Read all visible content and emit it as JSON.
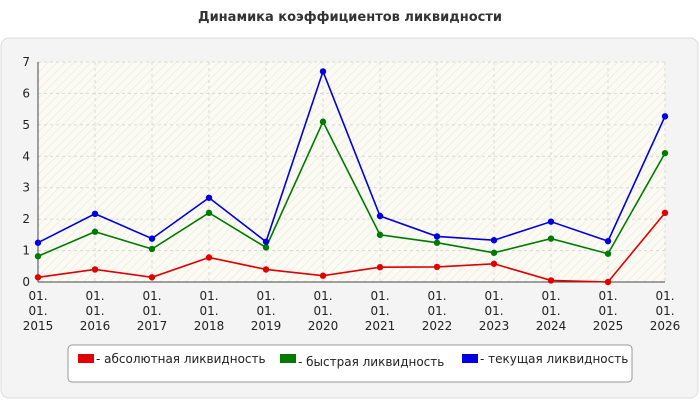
{
  "chart_data": {
    "type": "line",
    "title": "Динамика коэффициентов ликвидности",
    "categories": [
      "01.\n01.\n2015",
      "01.\n01.\n2016",
      "01.\n01.\n2017",
      "01.\n01.\n2018",
      "01.\n01.\n2019",
      "01.\n01.\n2020",
      "01.\n01.\n2021",
      "01.\n01.\n2022",
      "01.\n01.\n2023",
      "01.\n01.\n2024",
      "01.\n01.\n2025",
      "01.\n01.\n2026"
    ],
    "series": [
      {
        "name": "- абсолютная ликвидность",
        "color": "#e00000",
        "values": [
          0.15,
          0.4,
          0.15,
          0.78,
          0.4,
          0.2,
          0.47,
          0.48,
          0.58,
          0.05,
          0.0,
          2.2
        ]
      },
      {
        "name": "- быстрая ликвидность",
        "color": "#007a00",
        "values": [
          0.82,
          1.6,
          1.05,
          2.2,
          1.1,
          5.1,
          1.5,
          1.25,
          0.93,
          1.38,
          0.9,
          4.1
        ]
      },
      {
        "name": "- текущая ликвидность",
        "color": "#0000e0",
        "values": [
          1.25,
          2.17,
          1.38,
          2.68,
          1.28,
          6.7,
          2.1,
          1.45,
          1.33,
          1.92,
          1.3,
          5.27
        ]
      }
    ],
    "ylim": [
      0,
      7
    ],
    "yticks": [
      0,
      1,
      2,
      3,
      4,
      5,
      6,
      7
    ],
    "grid": true
  }
}
